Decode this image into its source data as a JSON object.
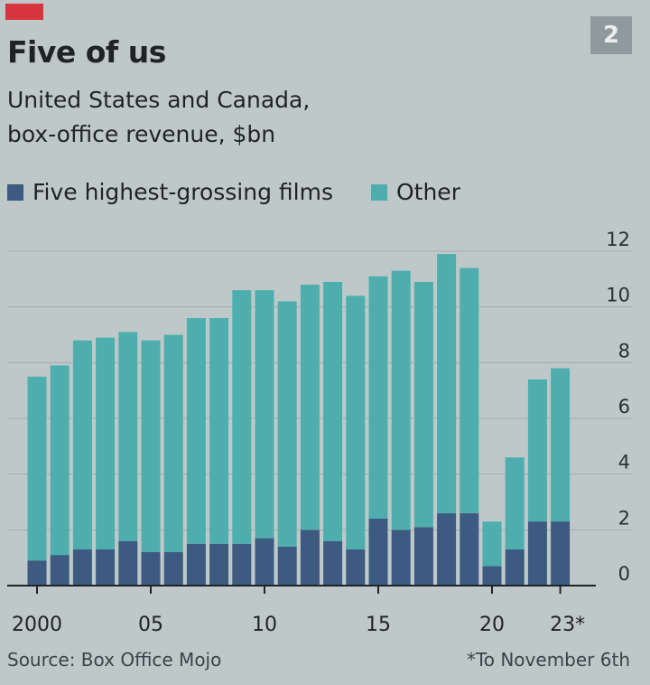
{
  "badge": "2",
  "chart_data": {
    "type": "bar",
    "stacked": true,
    "title": "Five of us",
    "subtitle_lines": [
      "United States and Canada,",
      "box-office revenue, $bn"
    ],
    "x": [
      2000,
      2001,
      2002,
      2003,
      2004,
      2005,
      2006,
      2007,
      2008,
      2009,
      2010,
      2011,
      2012,
      2013,
      2014,
      2015,
      2016,
      2017,
      2018,
      2019,
      2020,
      2021,
      2022,
      2023
    ],
    "x_tick_labels": [
      {
        "x": 2000,
        "label": "2000"
      },
      {
        "x": 2005,
        "label": "05"
      },
      {
        "x": 2010,
        "label": "10"
      },
      {
        "x": 2015,
        "label": "15"
      },
      {
        "x": 2020,
        "label": "20"
      },
      {
        "x": 2023,
        "label": "23*"
      }
    ],
    "series": [
      {
        "name": "Five highest-grossing films",
        "color": "#3d5a80",
        "values": [
          0.9,
          1.1,
          1.3,
          1.3,
          1.6,
          1.2,
          1.2,
          1.5,
          1.5,
          1.5,
          1.7,
          1.4,
          2.0,
          1.6,
          1.3,
          2.4,
          2.0,
          2.1,
          2.6,
          2.6,
          0.7,
          1.3,
          2.3,
          2.3
        ]
      },
      {
        "name": "Other",
        "color": "#4eaeae",
        "values": [
          6.6,
          6.8,
          7.5,
          7.6,
          7.5,
          7.6,
          7.8,
          8.1,
          8.1,
          9.1,
          8.9,
          8.8,
          8.8,
          9.3,
          9.1,
          8.7,
          9.3,
          8.8,
          9.3,
          8.8,
          1.6,
          3.3,
          5.1,
          5.5
        ]
      }
    ],
    "ylim": [
      0,
      12
    ],
    "y_ticks": [
      0,
      2,
      4,
      6,
      8,
      10,
      12
    ],
    "y_axis_position": "right",
    "grid": true,
    "legend_position": "top-left",
    "source": "Source: Box Office Mojo",
    "footnote": "*To November 6th"
  }
}
